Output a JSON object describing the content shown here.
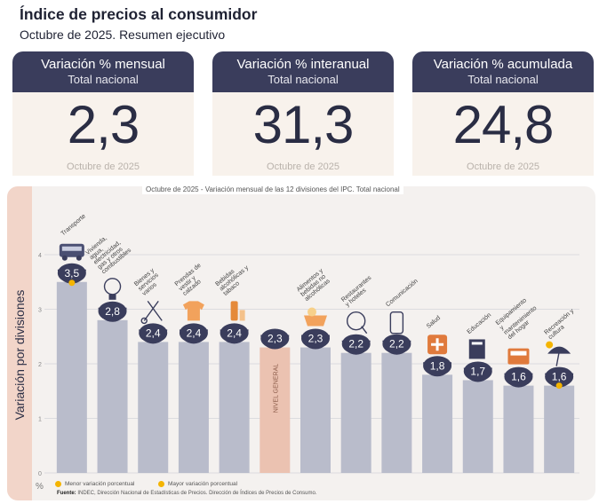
{
  "header": {
    "title": "Índice de precios al consumidor",
    "subtitle": "Octubre de 2025. Resumen ejecutivo"
  },
  "cards": [
    {
      "title": "Variación % mensual",
      "subtitle": "Total nacional",
      "value": "2,3",
      "date": "Octubre de 2025"
    },
    {
      "title": "Variación % interanual",
      "subtitle": "Total nacional",
      "value": "31,3",
      "date": "Octubre de 2025"
    },
    {
      "title": "Variación % acumulada",
      "subtitle": "Total nacional",
      "value": "24,8",
      "date": "Octubre de 2025"
    }
  ],
  "colors": {
    "card_header": "#3a3d5c",
    "bar": "#b9bccb",
    "bar_general": "#ebc2b1",
    "bubble": "#3a3d5c",
    "highlight": "#f4b400",
    "side_band": "#f2d5c9"
  },
  "chart_data": {
    "type": "bar",
    "title": "Octubre de 2025 - Variación mensual de las 12 divisiones del IPC. Total nacional",
    "ylabel": "Variación por divisiones",
    "yunit": "%",
    "ylim": [
      0,
      4
    ],
    "yticks": [
      "0",
      "1",
      "2",
      "3",
      "4"
    ],
    "grid": true,
    "categories": [
      "Transporte",
      "Vivienda, agua, electricidad, gas y otros combustibles",
      "Bienes y servicios varios",
      "Prendas de vestir y calzado",
      "Bebidas alcohólicas y tabaco",
      "NIVEL GENERAL",
      "Alimentos y bebidas no alcohólicas",
      "Restaurantes y hoteles",
      "Comunicación",
      "Salud",
      "Educación",
      "Equipamiento y mantenimiento del hogar",
      "Recreación y cultura"
    ],
    "values": [
      3.5,
      2.8,
      2.4,
      2.4,
      2.4,
      2.3,
      2.3,
      2.2,
      2.2,
      1.8,
      1.7,
      1.6,
      1.6
    ],
    "value_labels": [
      "3,5",
      "2,8",
      "2,4",
      "2,4",
      "2,4",
      "2,3",
      "2,3",
      "2,2",
      "2,2",
      "1,8",
      "1,7",
      "1,6",
      "1,6"
    ],
    "icons": [
      "bus-icon",
      "lightbulb-icon",
      "scissors-icon",
      "shirt-icon",
      "bottle-icon",
      "",
      "basket-icon",
      "utensils-icon",
      "phone-icon",
      "medical-cross-icon",
      "book-icon",
      "appliance-icon",
      "beach-umbrella-icon"
    ],
    "general_index": "NIVEL GENERAL",
    "markers": {
      "min": "Recreación y cultura",
      "max": "Transporte"
    },
    "legend": [
      {
        "label": "Menor variación porcentual"
      },
      {
        "label": "Mayor variación porcentual"
      }
    ],
    "source_label": "Fuente:",
    "source_text": "INDEC, Dirección Nacional de Estadísticas de Precios. Dirección de Índices de Precios de Consumo."
  }
}
